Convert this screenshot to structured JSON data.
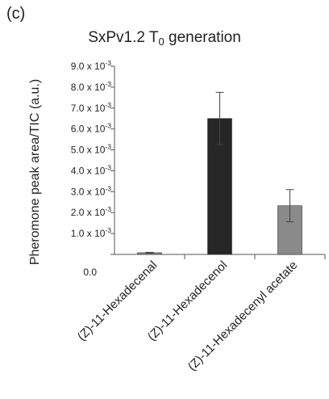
{
  "panel_label": "(c)",
  "chart_data": {
    "type": "bar",
    "title_main": "SxPv1.2 T",
    "title_sub": "0",
    "title_rest": " generation",
    "ylabel": "Pheromone peak area/TIC (a.u.)",
    "xlabel": "",
    "ylim": [
      0,
      0.009
    ],
    "yticks": [
      0,
      0.001,
      0.002,
      0.003,
      0.004,
      0.005,
      0.006,
      0.007,
      0.008,
      0.009
    ],
    "ytick_labels": [
      {
        "mantissa": "0.0",
        "exp": ""
      },
      {
        "mantissa": "1.0 x 10",
        "exp": "-3"
      },
      {
        "mantissa": "2.0 x 10",
        "exp": "-3"
      },
      {
        "mantissa": "3.0 x 10",
        "exp": "-3"
      },
      {
        "mantissa": "4.0 x 10",
        "exp": "-3"
      },
      {
        "mantissa": "5.0 x 10",
        "exp": "-3"
      },
      {
        "mantissa": "6.0 x 10",
        "exp": "-3"
      },
      {
        "mantissa": "7.0 x 10",
        "exp": "-3"
      },
      {
        "mantissa": "8.0 x 10",
        "exp": "-3"
      },
      {
        "mantissa": "9.0 x 10",
        "exp": "-3"
      }
    ],
    "categories": [
      "(Z)-11-Hexadecenal",
      "(Z)-11-Hexadecenol",
      "(Z)-11-Hexadecenyl acetate"
    ],
    "values": [
      8e-05,
      0.0065,
      0.00233
    ],
    "errors": [
      2e-05,
      0.00125,
      0.00077
    ],
    "colors": [
      "#8a8a8a",
      "#262626",
      "#8a8a8a"
    ],
    "grid": false,
    "legend": "none"
  }
}
